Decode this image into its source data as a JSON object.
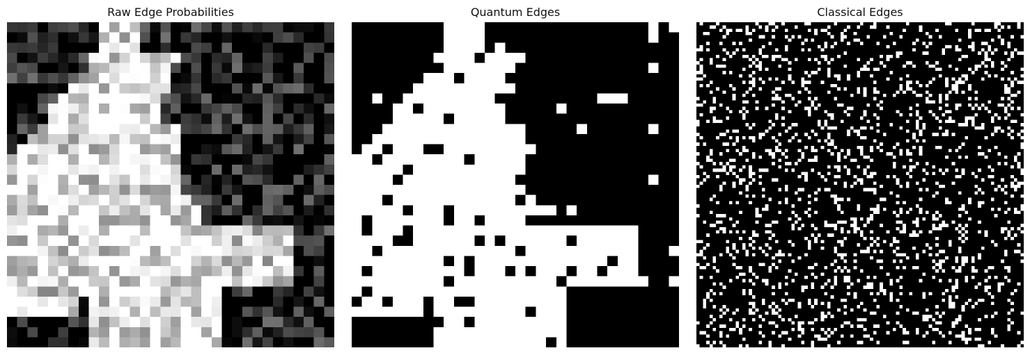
{
  "panels": [
    {
      "title": "Raw Edge Probabilities",
      "kind": "grayscale-heatmap",
      "grid": 32
    },
    {
      "title": "Quantum Edges",
      "kind": "binary-heatmap",
      "grid": 32
    },
    {
      "title": "Classical Edges",
      "kind": "binary-noise-heatmap",
      "grid": 100
    }
  ],
  "colors": {
    "background": "#ffffff",
    "low": "#000000",
    "high": "#ffffff"
  }
}
